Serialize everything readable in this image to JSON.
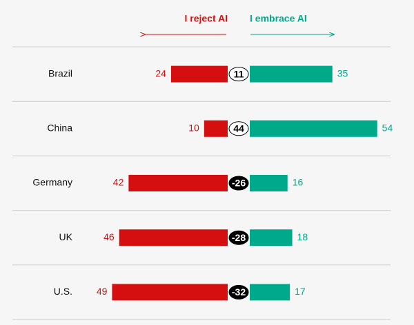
{
  "chart_data": {
    "type": "diverging-bar",
    "categories": [
      "Brazil",
      "China",
      "Germany",
      "UK",
      "U.S."
    ],
    "series": [
      {
        "name": "I reject AI",
        "color": "#d50f0f",
        "values": [
          24,
          10,
          42,
          46,
          49
        ]
      },
      {
        "name": "I embrace AI",
        "color": "#00a98a",
        "values": [
          35,
          54,
          16,
          18,
          17
        ]
      }
    ],
    "net_values": [
      11,
      44,
      -26,
      -28,
      -32
    ]
  }
}
